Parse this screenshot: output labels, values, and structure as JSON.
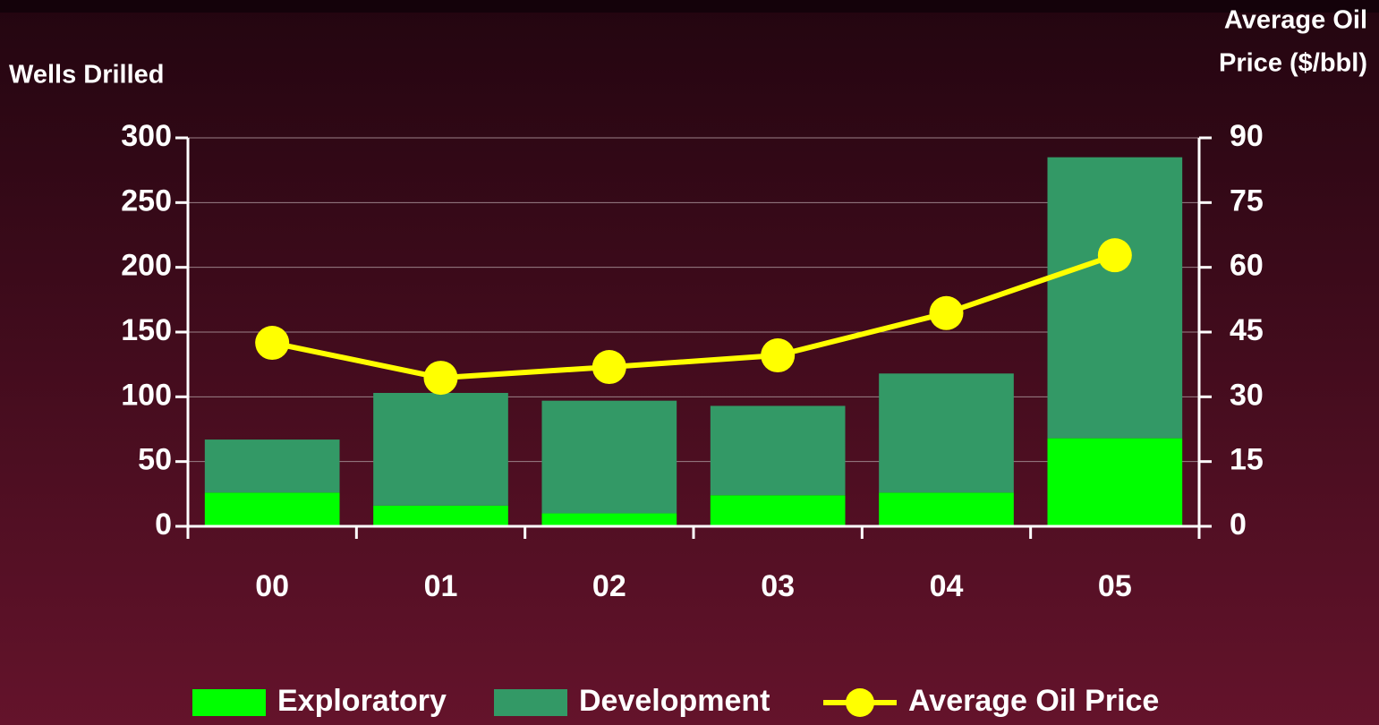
{
  "chart_data": {
    "type": "bar",
    "stacked": true,
    "y_label": "Wells Drilled",
    "y2_label": [
      "Average Oil",
      "Price ($/bbl)"
    ],
    "categories": [
      "00",
      "01",
      "02",
      "03",
      "04",
      "05"
    ],
    "series": [
      {
        "name": "Exploratory",
        "color": "#00ff00",
        "values": [
          26,
          16,
          10,
          24,
          26,
          68
        ]
      },
      {
        "name": "Development",
        "color": "#339966",
        "values": [
          41,
          87,
          87,
          69,
          92,
          217
        ]
      },
      {
        "name": "Average Oil Price",
        "color": "#ffff00",
        "type": "line",
        "axis": "y2",
        "values": [
          42.5,
          34.4,
          36.9,
          39.6,
          49.4,
          62.8
        ]
      }
    ],
    "ylim": [
      0,
      300
    ],
    "yticks": [
      0,
      50,
      100,
      150,
      200,
      250,
      300
    ],
    "y2lim": [
      0,
      90
    ],
    "y2ticks": [
      0,
      15,
      30,
      45,
      60,
      75,
      90
    ],
    "grid": true,
    "legend": "bottom"
  }
}
